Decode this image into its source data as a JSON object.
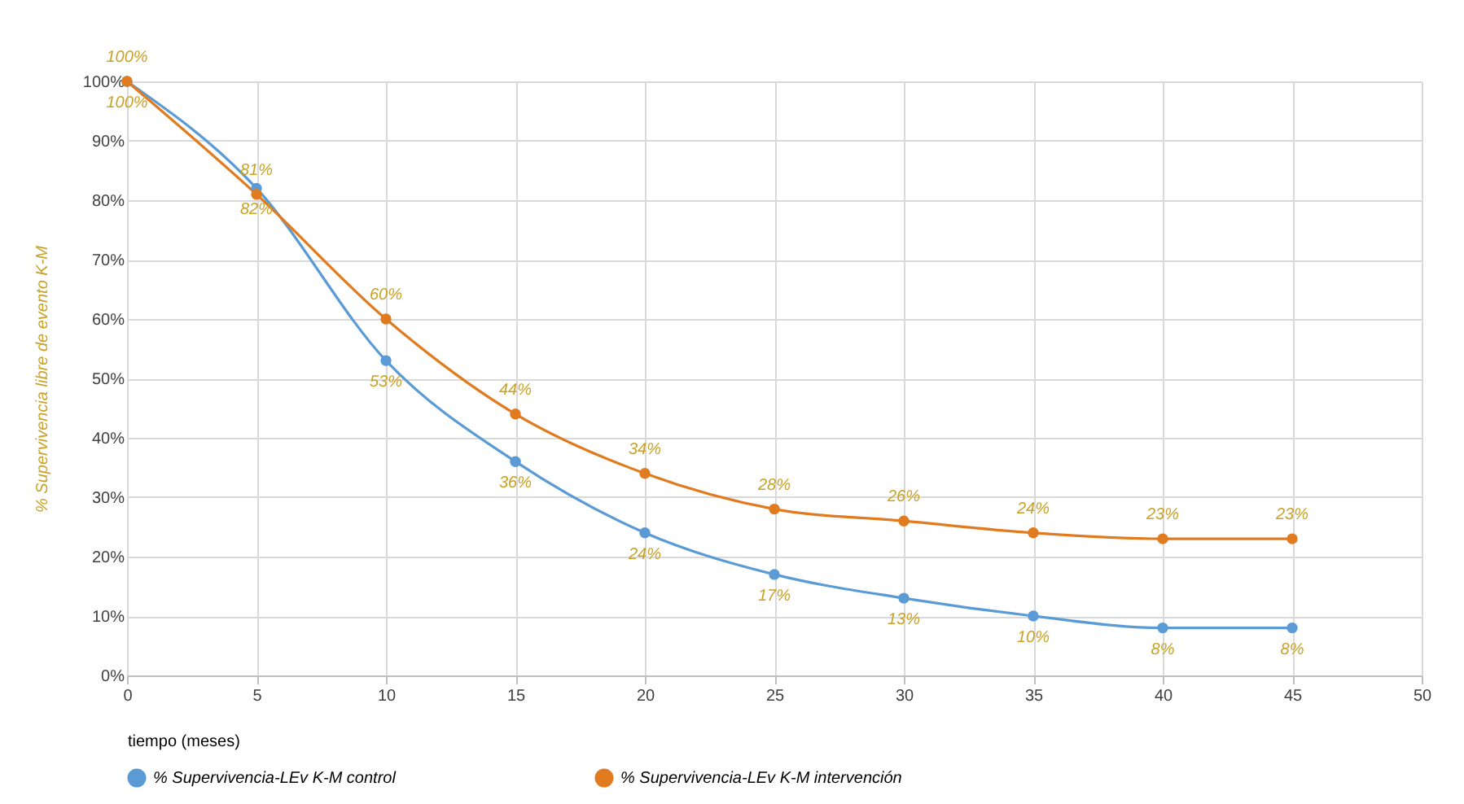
{
  "chart_data": {
    "type": "line",
    "xlabel": "tiempo (meses)",
    "ylabel": "% Supervivencia libre de evento K-M",
    "x": [
      0,
      5,
      10,
      15,
      20,
      25,
      30,
      35,
      40,
      45
    ],
    "series": [
      {
        "name": "% Supervivencia-LEv K-M control",
        "color": "#5b9bd5",
        "values": [
          100,
          82,
          53,
          36,
          24,
          17,
          13,
          10,
          8,
          8
        ],
        "value_labels": [
          "100%",
          "82%",
          "53%",
          "36%",
          "24%",
          "17%",
          "13%",
          "10%",
          "8%",
          "8%"
        ]
      },
      {
        "name": "% Supervivencia-LEv K-M intervención",
        "color": "#e07b20",
        "values": [
          100,
          81,
          60,
          44,
          34,
          28,
          26,
          24,
          23,
          23
        ],
        "value_labels": [
          "100%",
          "81%",
          "60%",
          "44%",
          "34%",
          "28%",
          "26%",
          "24%",
          "23%",
          "23%"
        ]
      }
    ],
    "xlim": [
      0,
      50
    ],
    "xticks": [
      0,
      5,
      10,
      15,
      20,
      25,
      30,
      35,
      40,
      45,
      50
    ],
    "ylim": [
      0,
      100
    ],
    "yticks": [
      {
        "value": 0,
        "label": "0%"
      },
      {
        "value": 10,
        "label": "10%"
      },
      {
        "value": 20,
        "label": "20%"
      },
      {
        "value": 30,
        "label": "30%"
      },
      {
        "value": 40,
        "label": "40%"
      },
      {
        "value": 50,
        "label": "50%"
      },
      {
        "value": 60,
        "label": "60%"
      },
      {
        "value": 70,
        "label": "70%"
      },
      {
        "value": 80,
        "label": "80%"
      },
      {
        "value": 90,
        "label": "90%"
      },
      {
        "value": 100,
        "label": "100%"
      }
    ],
    "grid": true,
    "legend": "bottom",
    "marker": "circle",
    "line_style": "solid"
  }
}
